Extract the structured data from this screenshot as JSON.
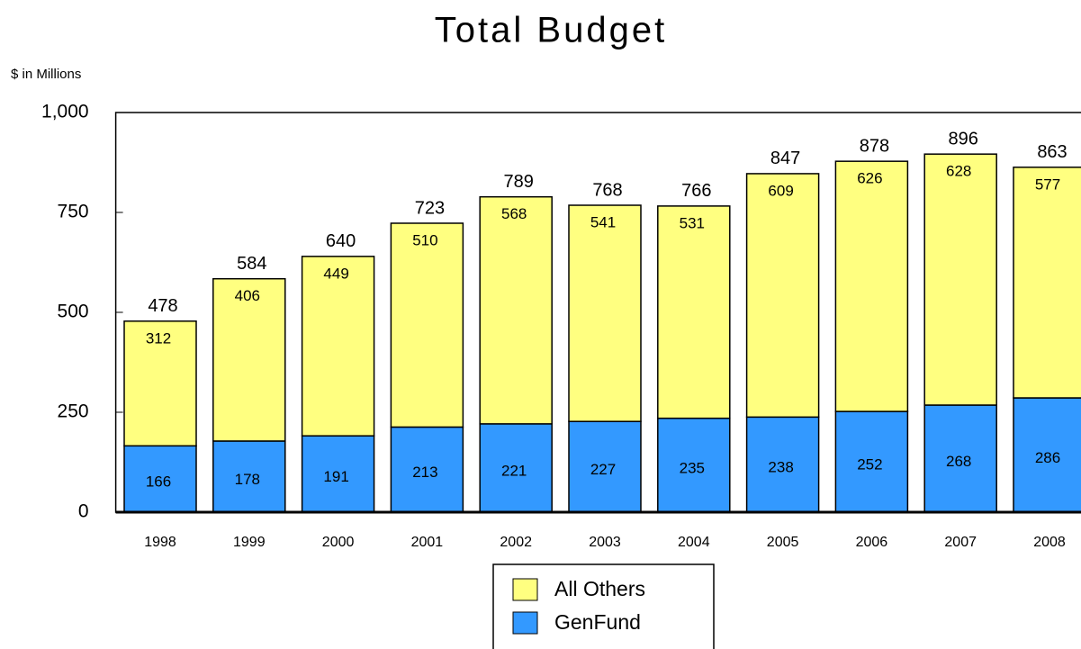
{
  "chart_data": {
    "type": "stacked_bar",
    "title": "Total Budget",
    "y_label": "$ in Millions",
    "categories": [
      "1998",
      "1999",
      "2000",
      "2001",
      "2002",
      "2003",
      "2004",
      "2005",
      "2006",
      "2007",
      "2008"
    ],
    "series": [
      {
        "name": "GenFund",
        "color": "#3399ff",
        "values": [
          166,
          178,
          191,
          213,
          221,
          227,
          235,
          238,
          252,
          268,
          286
        ]
      },
      {
        "name": "All Others",
        "color": "#ffff80",
        "values": [
          312,
          406,
          449,
          510,
          568,
          541,
          531,
          609,
          626,
          628,
          577
        ]
      }
    ],
    "totals": [
      478,
      584,
      640,
      723,
      789,
      768,
      766,
      847,
      878,
      896,
      863
    ],
    "ylim": [
      0,
      1000
    ],
    "yticks": [
      0,
      250,
      500,
      750,
      {
        "value": 1000,
        "label": "1,000"
      }
    ],
    "legend": "bottom"
  }
}
